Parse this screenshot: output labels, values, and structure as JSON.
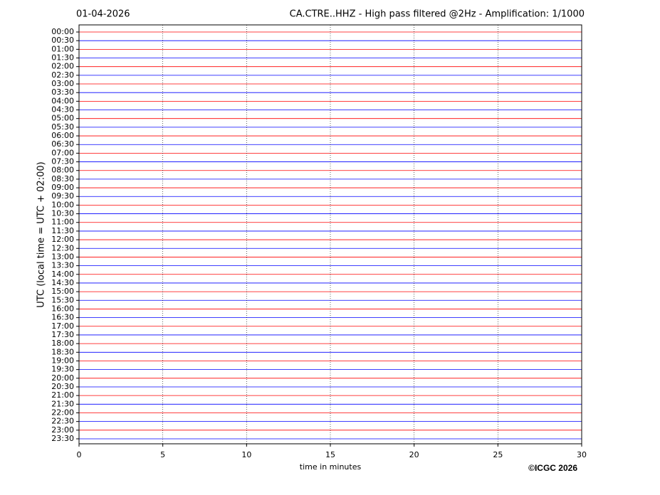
{
  "chart_data": {
    "type": "helicorder",
    "title_left": "01-04-2026",
    "title": "CA.CTRE..HHZ - High pass filtered @2Hz - Amplification: 1/1000",
    "categories": [
      "00:00",
      "00:30",
      "01:00",
      "01:30",
      "02:00",
      "02:30",
      "03:00",
      "03:30",
      "04:00",
      "04:30",
      "05:00",
      "05:30",
      "06:00",
      "06:30",
      "07:00",
      "07:30",
      "08:00",
      "08:30",
      "09:00",
      "09:30",
      "10:00",
      "10:30",
      "11:00",
      "11:30",
      "12:00",
      "12:30",
      "13:00",
      "13:30",
      "14:00",
      "14:30",
      "15:00",
      "15:30",
      "16:00",
      "16:30",
      "17:00",
      "17:30",
      "18:00",
      "18:30",
      "19:00",
      "19:30",
      "20:00",
      "20:30",
      "21:00",
      "21:30",
      "22:00",
      "22:30",
      "23:00",
      "23:30"
    ],
    "colors": [
      "#ff0000",
      "#0000ff"
    ],
    "xlim": [
      0,
      30
    ],
    "xticks": [
      0,
      5,
      10,
      15,
      20,
      25,
      30
    ],
    "grid": true,
    "xlabel": "time in minutes",
    "ylabel": "UTC (local time = UTC + 02:00)",
    "copyright": "©ICGC 2026"
  }
}
